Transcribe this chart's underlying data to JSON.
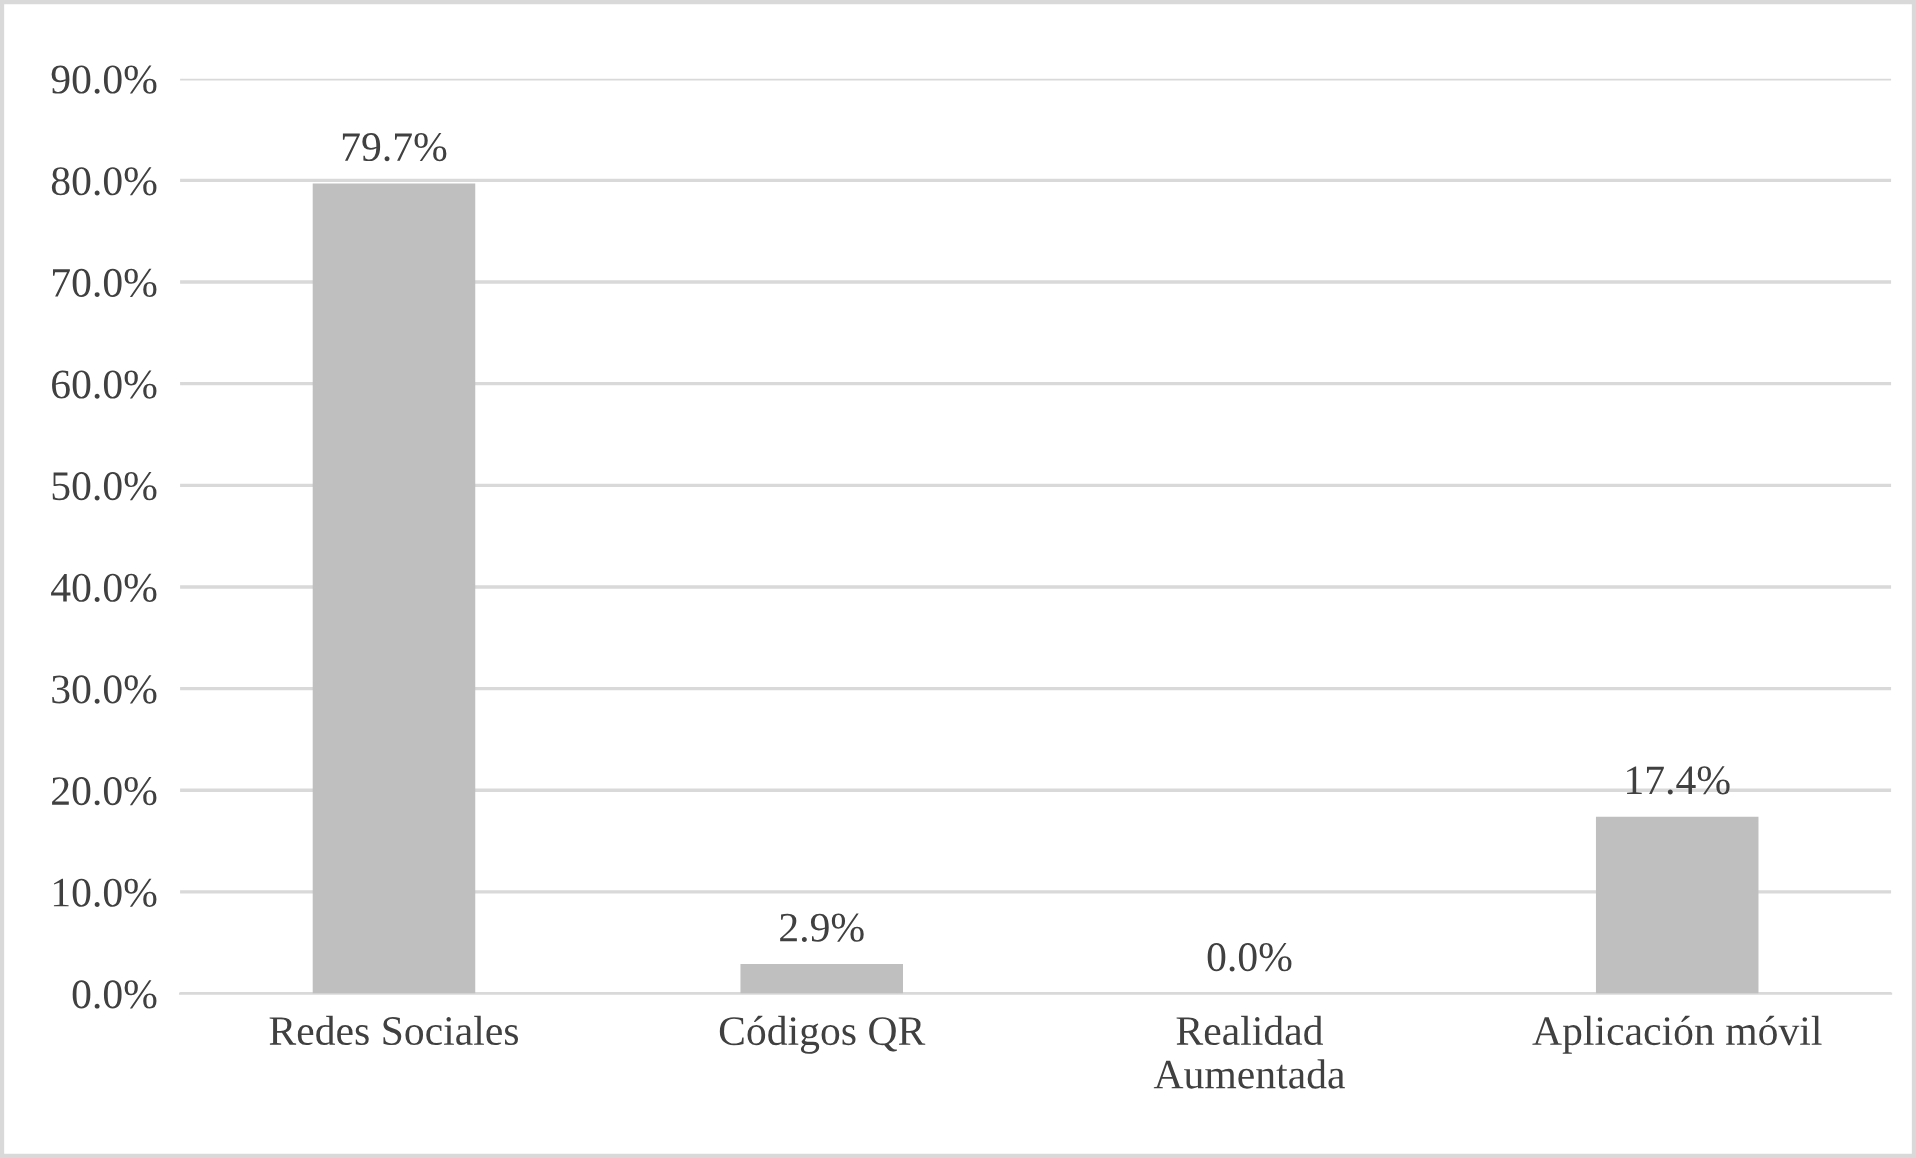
{
  "chart_data": {
    "type": "bar",
    "categories": [
      "Redes Sociales",
      "Códigos QR",
      "Realidad\nAumentada",
      "Aplicación móvil"
    ],
    "values": [
      79.7,
      2.9,
      0.0,
      17.4
    ],
    "value_labels": [
      "79.7%",
      "2.9%",
      "0.0%",
      "17.4%"
    ],
    "color": "#bfbfbf",
    "ylim": [
      0,
      90
    ],
    "yticks": [
      {
        "value": 0,
        "label": "0.0%"
      },
      {
        "value": 10,
        "label": "10.0%"
      },
      {
        "value": 20,
        "label": "20.0%"
      },
      {
        "value": 30,
        "label": "30.0%"
      },
      {
        "value": 40,
        "label": "40.0%"
      },
      {
        "value": 50,
        "label": "50.0%"
      },
      {
        "value": 60,
        "label": "60.0%"
      },
      {
        "value": 70,
        "label": "70.0%"
      },
      {
        "value": 80,
        "label": "80.0%"
      },
      {
        "value": 90,
        "label": "90.0%"
      }
    ],
    "grid": "y"
  }
}
